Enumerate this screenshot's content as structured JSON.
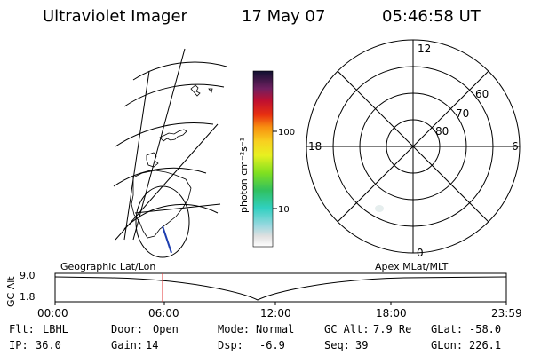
{
  "header": {
    "title": "Ultraviolet Imager",
    "date": "17 May 07",
    "time": "05:46:58 UT"
  },
  "left_map": {
    "label": "Geographic Lat/Lon"
  },
  "right_map": {
    "label": "Apex MLat/MLT",
    "mlt_labels": {
      "top": "12",
      "bottom": "0",
      "left": "18",
      "right": "6"
    },
    "lat_labels": [
      "60",
      "70",
      "80"
    ]
  },
  "colorbar": {
    "unit": "photon cm⁻²s⁻¹",
    "ticks": [
      "100",
      "10"
    ],
    "scale": "log"
  },
  "alt_plot": {
    "ylabel": "GC Alt",
    "y_ticks": [
      "9.0",
      "1.8"
    ],
    "x_ticks": [
      "00:00",
      "06:00",
      "12:00",
      "18:00",
      "23:59"
    ]
  },
  "info": {
    "row1": [
      {
        "label": "Flt:",
        "value": "LBHL"
      },
      {
        "label": "Door:",
        "value": "Open"
      },
      {
        "label": "Mode:",
        "value": "Normal"
      },
      {
        "label": "GC Alt:",
        "value": "7.9 Re"
      },
      {
        "label": "GLat:",
        "value": "-58.0"
      }
    ],
    "row2": [
      {
        "label": "IP:",
        "value": "36.0"
      },
      {
        "label": "Gain:",
        "value": "14"
      },
      {
        "label": "Dsp:",
        "value": "-6.9"
      },
      {
        "label": "Seq:",
        "value": "39"
      },
      {
        "label": "GLon:",
        "value": "226.1"
      }
    ]
  },
  "colors": {
    "marker": "#e03030",
    "track": "#1f3fb0"
  }
}
